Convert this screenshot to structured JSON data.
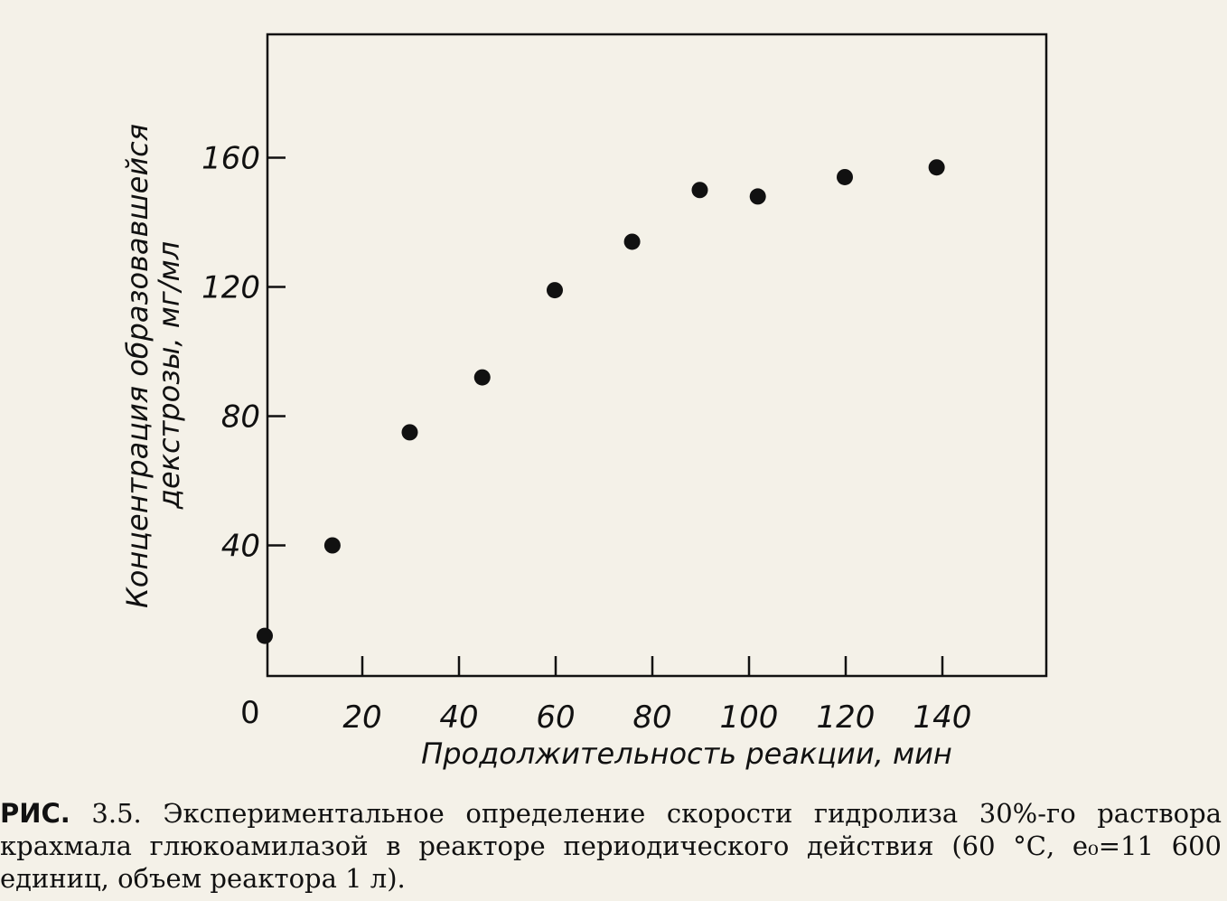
{
  "chart_data": {
    "type": "scatter",
    "xlabel": "Продолжительность реакции, мин",
    "ylabel_line1": "Концентрация образовавшейся",
    "ylabel_line2": "декстрозы, мг/мл",
    "x_ticks": [
      "20",
      "40",
      "60",
      "80",
      "100",
      "120",
      "140"
    ],
    "x_tick_values": [
      20,
      40,
      60,
      80,
      100,
      120,
      140
    ],
    "y_ticks": [
      "40",
      "80",
      "120",
      "160"
    ],
    "y_tick_values": [
      40,
      80,
      120,
      160
    ],
    "origin_label": "0",
    "xlim": [
      0,
      160
    ],
    "ylim": [
      0,
      200
    ],
    "grid": false,
    "points": [
      {
        "x": 0,
        "y": 12
      },
      {
        "x": 14,
        "y": 40
      },
      {
        "x": 30,
        "y": 75
      },
      {
        "x": 45,
        "y": 92
      },
      {
        "x": 60,
        "y": 119
      },
      {
        "x": 76,
        "y": 134
      },
      {
        "x": 90,
        "y": 150
      },
      {
        "x": 102,
        "y": 148
      },
      {
        "x": 120,
        "y": 154
      },
      {
        "x": 139,
        "y": 157
      }
    ],
    "marker_color": "#111111"
  },
  "caption": {
    "label": "РИС.",
    "text": "3.5. Экспериментальное определение скорости гидролиза 30%-го раствора крахмала глюкоамилазой в реакторе периодического действия (60 °С, e₀=11 600 единиц, объем реактора 1 л)."
  }
}
